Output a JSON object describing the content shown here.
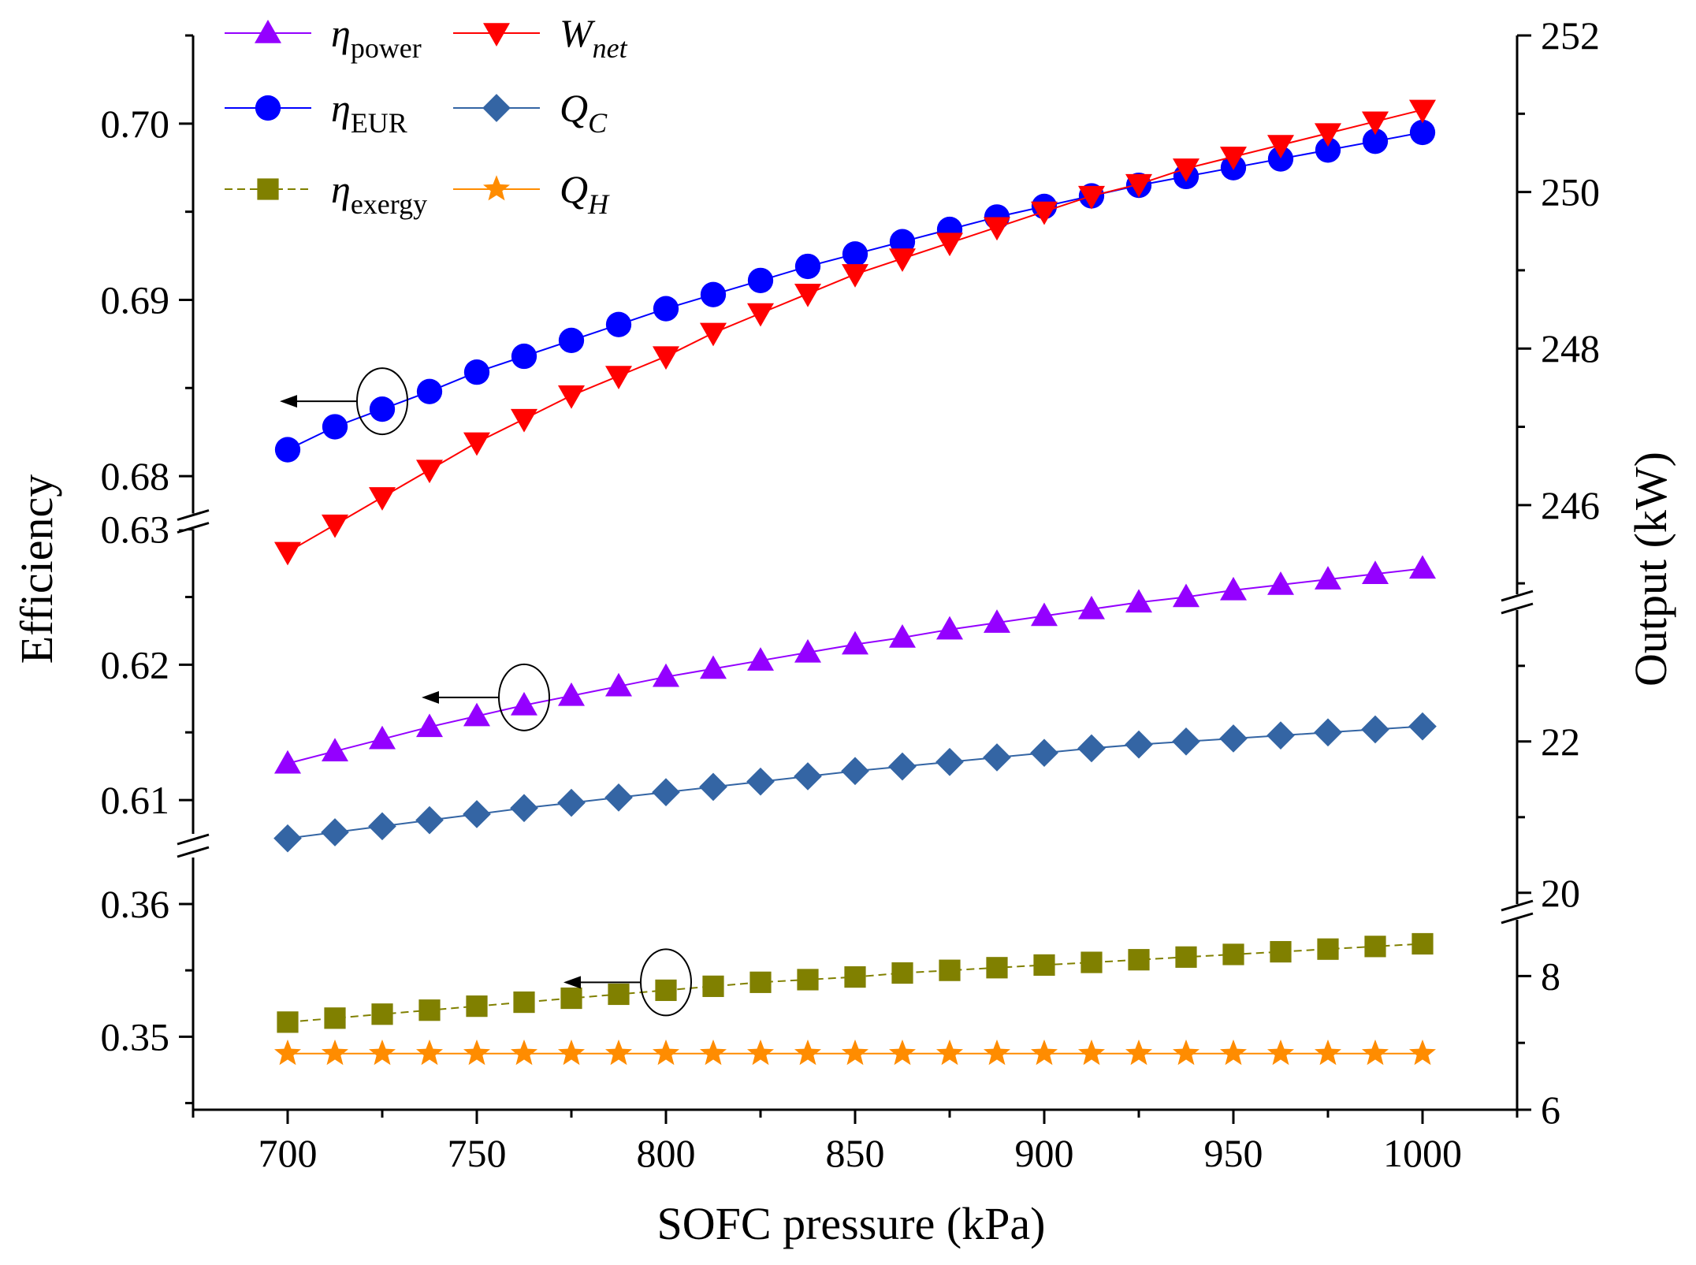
{
  "chart_data": {
    "type": "line",
    "xlabel": "SOFC pressure (kPa)",
    "ylabel_left": "Efficiency",
    "ylabel_right": "Output (kW)",
    "x": [
      700,
      712.5,
      725,
      737.5,
      750,
      762.5,
      775,
      787.5,
      800,
      812.5,
      825,
      837.5,
      850,
      862.5,
      875,
      887.5,
      900,
      912.5,
      925,
      937.5,
      950,
      962.5,
      975,
      987.5,
      1000
    ],
    "x_ticks": [
      700,
      750,
      800,
      850,
      900,
      950,
      1000
    ],
    "x_range": [
      675,
      1025
    ],
    "left_axis_segments": [
      {
        "name": "upper",
        "range": [
          0.6775,
          0.705
        ],
        "ticks": [
          0.68,
          0.69,
          0.7
        ],
        "tick_labels": [
          "0.68",
          "0.69",
          "0.70"
        ]
      },
      {
        "name": "middle",
        "range": [
          0.6075,
          0.6305
        ],
        "ticks": [
          0.61,
          0.62,
          0.63
        ],
        "tick_labels": [
          "0.61",
          "0.62",
          "0.63"
        ]
      },
      {
        "name": "lower",
        "range": [
          0.3445,
          0.3635
        ],
        "ticks": [
          0.35,
          0.36
        ],
        "tick_labels": [
          "0.35",
          "0.36"
        ]
      }
    ],
    "right_axis_segments": [
      {
        "name": "upper",
        "range": [
          244.8,
          252
        ],
        "ticks": [
          246,
          248,
          250,
          252
        ],
        "tick_labels": [
          "246",
          "248",
          "250",
          "252"
        ]
      },
      {
        "name": "middle",
        "range": [
          19.8,
          23.8
        ],
        "ticks": [
          20,
          22
        ],
        "tick_labels": [
          "20",
          "22"
        ]
      },
      {
        "name": "lower",
        "range": [
          6,
          8.9
        ],
        "ticks": [
          6,
          8
        ],
        "tick_labels": [
          "6",
          "8"
        ]
      }
    ],
    "series": [
      {
        "name": "η_power",
        "legend_symbol": "η",
        "legend_sub": "power",
        "axis": "left",
        "segment": "middle",
        "marker": "triangle-up",
        "color": "#9400FF",
        "values": [
          0.6127,
          0.6136,
          0.6145,
          0.6154,
          0.6162,
          0.617,
          0.6177,
          0.6184,
          0.6191,
          0.6197,
          0.6203,
          0.6209,
          0.6215,
          0.622,
          0.6226,
          0.6231,
          0.6236,
          0.6241,
          0.6246,
          0.625,
          0.6255,
          0.6259,
          0.6263,
          0.6267,
          0.6271
        ]
      },
      {
        "name": "η_EUR",
        "legend_symbol": "η",
        "legend_sub": "EUR",
        "axis": "left",
        "segment": "upper",
        "marker": "circle",
        "color": "#0000FF",
        "values": [
          0.6815,
          0.6828,
          0.6838,
          0.6848,
          0.6859,
          0.6868,
          0.6877,
          0.6886,
          0.6895,
          0.6903,
          0.6911,
          0.6919,
          0.6926,
          0.6933,
          0.694,
          0.6947,
          0.6953,
          0.6959,
          0.6965,
          0.697,
          0.6975,
          0.698,
          0.6985,
          0.699,
          0.6995
        ]
      },
      {
        "name": "η_exergy",
        "legend_symbol": "η",
        "legend_sub": "exergy",
        "axis": "left",
        "segment": "lower",
        "marker": "square",
        "color": "#808000",
        "values": [
          0.3511,
          0.3514,
          0.3517,
          0.352,
          0.3523,
          0.3526,
          0.3529,
          0.3532,
          0.3535,
          0.3538,
          0.3541,
          0.3543,
          0.3545,
          0.3548,
          0.355,
          0.3552,
          0.3554,
          0.3556,
          0.3558,
          0.356,
          0.3562,
          0.3564,
          0.3566,
          0.3568,
          0.357
        ]
      },
      {
        "name": "W_net",
        "legend_symbol": "W",
        "legend_sub": "net",
        "axis": "right",
        "segment": "upper",
        "marker": "triangle-down",
        "color": "#FF0000",
        "values": [
          245.4,
          245.75,
          246.1,
          246.45,
          246.8,
          247.1,
          247.4,
          247.65,
          247.9,
          248.2,
          248.45,
          248.7,
          248.95,
          249.15,
          249.35,
          249.55,
          249.75,
          249.95,
          250.1,
          250.3,
          250.45,
          250.6,
          250.75,
          250.9,
          251.05
        ]
      },
      {
        "name": "Q_C",
        "legend_symbol": "Q",
        "legend_sub": "C",
        "axis": "right",
        "segment": "middle",
        "marker": "diamond",
        "color": "#3465A4",
        "values": [
          20.72,
          20.8,
          20.88,
          20.96,
          21.04,
          21.12,
          21.19,
          21.26,
          21.33,
          21.4,
          21.47,
          21.54,
          21.61,
          21.67,
          21.73,
          21.79,
          21.85,
          21.91,
          21.96,
          22.0,
          22.04,
          22.08,
          22.12,
          22.16,
          22.2
        ]
      },
      {
        "name": "Q_H",
        "legend_symbol": "Q",
        "legend_sub": "H",
        "axis": "right",
        "segment": "lower",
        "marker": "star",
        "color": "#FF8C00",
        "values": [
          6.84,
          6.84,
          6.84,
          6.84,
          6.84,
          6.84,
          6.84,
          6.84,
          6.84,
          6.84,
          6.84,
          6.84,
          6.84,
          6.84,
          6.84,
          6.84,
          6.84,
          6.84,
          6.84,
          6.84,
          6.84,
          6.84,
          6.84,
          6.84,
          6.84
        ]
      }
    ],
    "annotations": [
      {
        "type": "circle-arrow",
        "series": "η_EUR",
        "x": 725,
        "direction": "left"
      },
      {
        "type": "circle-arrow",
        "series": "η_power",
        "x": 762.5,
        "direction": "left"
      },
      {
        "type": "circle-arrow",
        "series": "η_exergy",
        "x": 800,
        "direction": "left"
      }
    ]
  }
}
